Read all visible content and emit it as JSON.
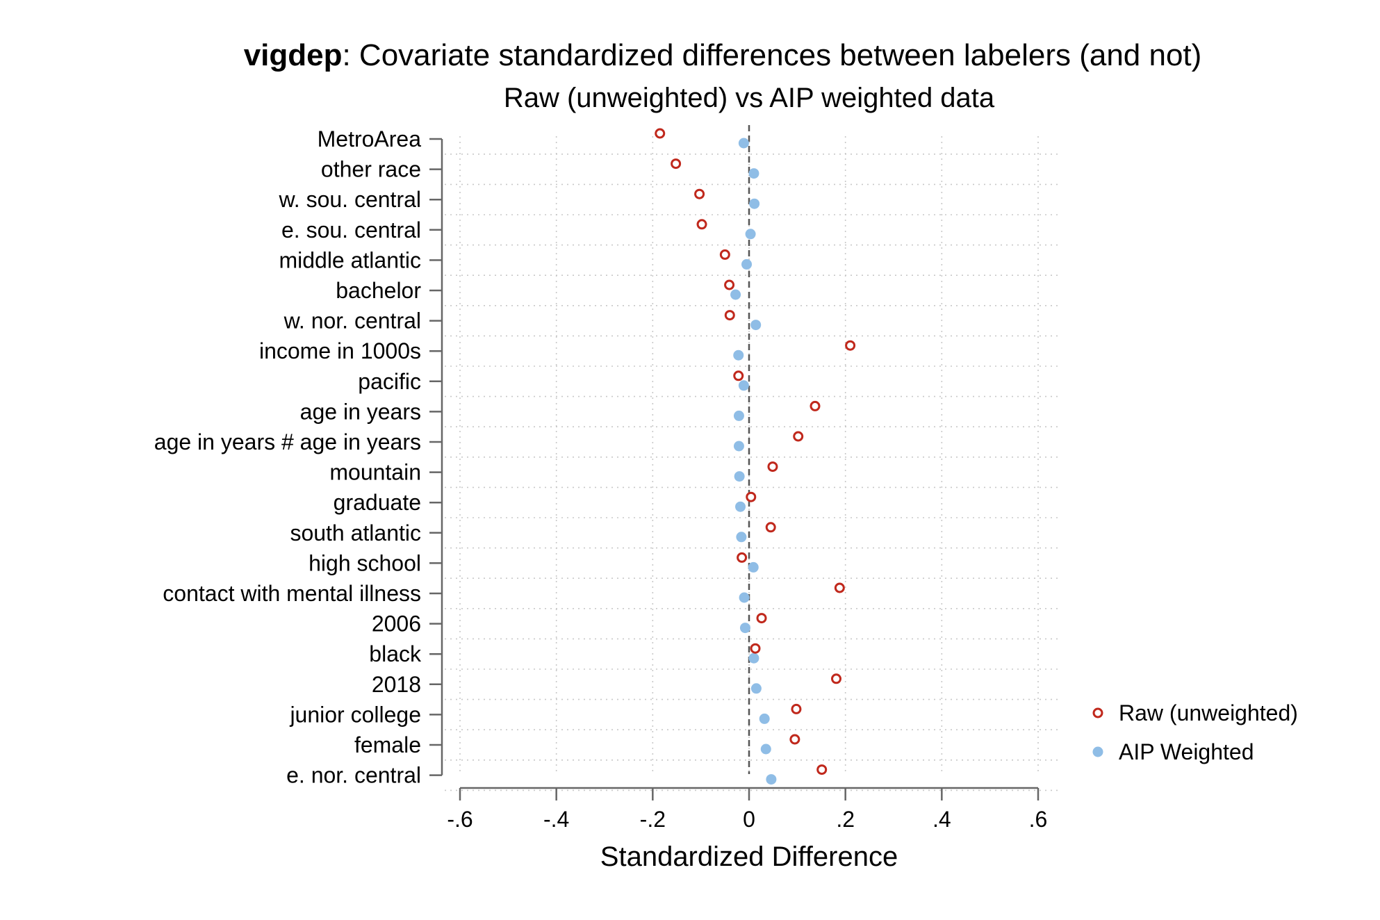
{
  "chart_data": {
    "type": "scatter",
    "title_bold": "vigdep",
    "title_rest": ": Covariate standardized differences between labelers (and not)",
    "subtitle": "Raw (unweighted) vs AIP weighted data",
    "xlabel": "Standardized Difference",
    "ylabel": "",
    "xlim": [
      -0.6,
      0.6
    ],
    "xticks": [
      {
        "value": -0.6,
        "label": "-.6"
      },
      {
        "value": -0.4,
        "label": "-.4"
      },
      {
        "value": -0.2,
        "label": "-.2"
      },
      {
        "value": 0,
        "label": "0"
      },
      {
        "value": 0.2,
        "label": ".2"
      },
      {
        "value": 0.4,
        "label": ".4"
      },
      {
        "value": 0.6,
        "label": ".6"
      }
    ],
    "reference_line": 0,
    "grid": true,
    "legend_position": "right",
    "categories": [
      "MetroArea",
      "other race",
      "w. sou. central",
      "e. sou. central",
      "middle atlantic",
      "bachelor",
      "w. nor. central",
      "income in 1000s",
      "pacific",
      "age in years",
      "age in years # age in years",
      "mountain",
      "graduate",
      "south atlantic",
      "high school",
      "contact with mental illness",
      "2006",
      "black",
      "2018",
      "junior college",
      "female",
      "e. nor. central"
    ],
    "series": [
      {
        "name": "Raw (unweighted)",
        "marker": "hollow-circle",
        "color": "#c0281c",
        "values": [
          -0.185,
          -0.152,
          -0.103,
          -0.098,
          -0.05,
          -0.041,
          -0.04,
          0.21,
          -0.022,
          0.137,
          0.102,
          0.049,
          0.004,
          0.045,
          -0.015,
          0.188,
          0.026,
          0.013,
          0.181,
          0.098,
          0.095,
          0.151
        ]
      },
      {
        "name": "AIP Weighted",
        "marker": "filled-circle",
        "color": "#8fbde6",
        "values": [
          -0.011,
          0.01,
          0.011,
          0.003,
          -0.005,
          -0.028,
          0.014,
          -0.022,
          -0.011,
          -0.021,
          -0.021,
          -0.02,
          -0.018,
          -0.016,
          0.009,
          -0.01,
          -0.008,
          0.01,
          0.015,
          0.032,
          0.035,
          0.046
        ]
      }
    ]
  }
}
